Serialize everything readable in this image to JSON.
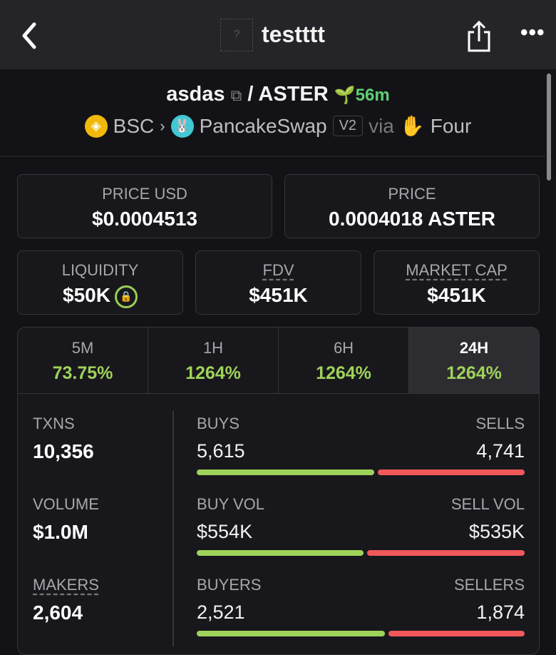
{
  "header": {
    "title": "testttt",
    "token_placeholder": "?"
  },
  "pair": {
    "base": "asdas",
    "separator": "/",
    "quote": "ASTER",
    "age": "56m"
  },
  "route": {
    "chain": "BSC",
    "dex": "PancakeSwap",
    "version": "V2",
    "via": "via",
    "launchpad": "Four"
  },
  "price_usd": {
    "label": "PRICE USD",
    "value": "$0.0004513"
  },
  "price": {
    "label": "PRICE",
    "value": "0.0004018 ASTER"
  },
  "liquidity": {
    "label": "LIQUIDITY",
    "value": "$50K"
  },
  "fdv": {
    "label": "FDV",
    "value": "$451K"
  },
  "market_cap": {
    "label": "MARKET CAP",
    "value": "$451K"
  },
  "tabs": [
    {
      "label": "5M",
      "change": "73.75%"
    },
    {
      "label": "1H",
      "change": "1264%"
    },
    {
      "label": "6H",
      "change": "1264%"
    },
    {
      "label": "24H",
      "change": "1264%",
      "active": true
    }
  ],
  "stats": [
    {
      "label": "TXNS",
      "value": "10,356"
    },
    {
      "label": "VOLUME",
      "value": "$1.0M"
    },
    {
      "label": "MAKERS",
      "value": "2,604"
    }
  ],
  "splits": [
    {
      "left_label": "BUYS",
      "right_label": "SELLS",
      "left_value": "5,615",
      "right_value": "4,741",
      "left_num": 5615,
      "right_num": 4741
    },
    {
      "left_label": "BUY VOL",
      "right_label": "SELL VOL",
      "left_value": "$554K",
      "right_value": "$535K",
      "left_num": 554,
      "right_num": 535
    },
    {
      "left_label": "BUYERS",
      "right_label": "SELLERS",
      "left_value": "2,521",
      "right_value": "1,874",
      "left_num": 2521,
      "right_num": 1874
    }
  ],
  "colors": {
    "positive": "#9fd25a",
    "negative": "#f0585a",
    "age": "#5fcf73"
  }
}
